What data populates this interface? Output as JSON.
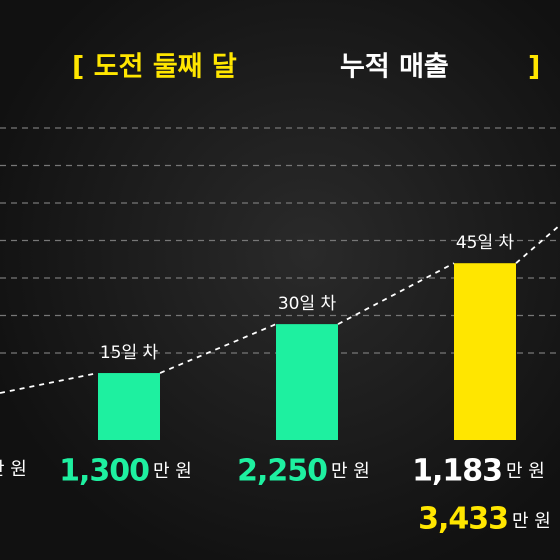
{
  "chart_data": {
    "type": "bar",
    "title_parts": [
      "[ 도전 둘째 달",
      "누적 매출",
      "]"
    ],
    "categories": [
      "15일 차",
      "30일 차",
      "45일 차"
    ],
    "values": [
      1300,
      2250,
      3433
    ],
    "value_labels": [
      "1,300",
      "2,250",
      "3,433"
    ],
    "increments": [
      null,
      null,
      1183
    ],
    "increment_labels": [
      null,
      null,
      "1,183"
    ],
    "unit": "만 원",
    "colors": [
      "#1ef0a0",
      "#1ef0a0",
      "#ffe600"
    ],
    "ylim": [
      0,
      6000
    ],
    "grid": true
  }
}
